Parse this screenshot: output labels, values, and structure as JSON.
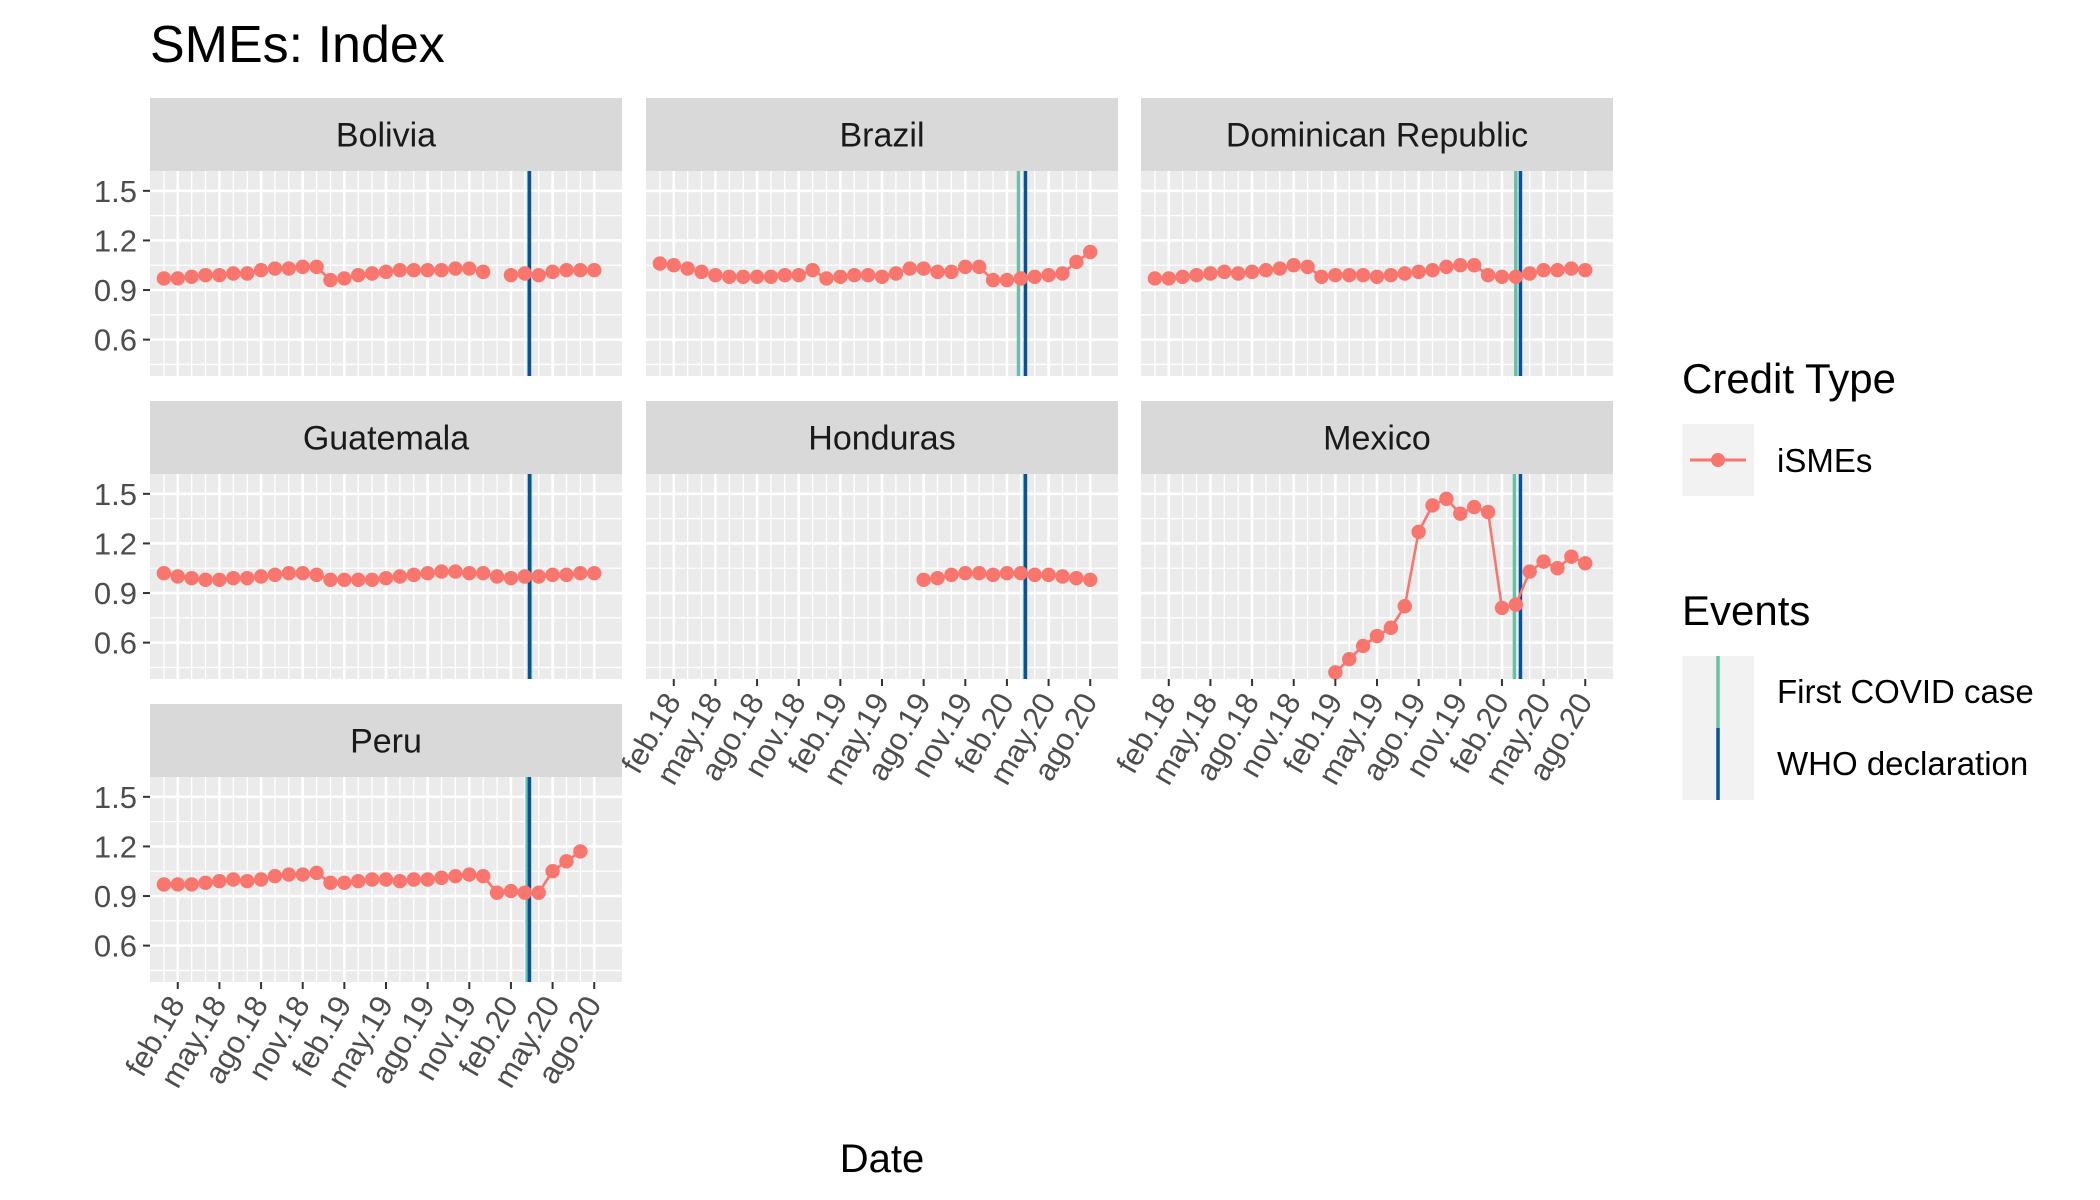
{
  "chart_data": {
    "type": "line",
    "title": "SMEs: Index",
    "xlabel": "Date",
    "ylabel": "",
    "ylim": [
      0.38,
      1.62
    ],
    "y_ticks": [
      "0.6",
      "0.9",
      "1.2",
      "1.5"
    ],
    "x_tick_labels": [
      "feb.18",
      "may.18",
      "ago.18",
      "nov.18",
      "feb.19",
      "may.19",
      "ago.19",
      "nov.19",
      "feb.20",
      "may.20",
      "ago.20"
    ],
    "x_range": [
      "2017-12",
      "2020-10"
    ],
    "grid": true,
    "facet_layout": "3 columns, 7 panels",
    "legend_position": "right",
    "x": [
      "2018-01",
      "2018-02",
      "2018-03",
      "2018-04",
      "2018-05",
      "2018-06",
      "2018-07",
      "2018-08",
      "2018-09",
      "2018-10",
      "2018-11",
      "2018-12",
      "2019-01",
      "2019-02",
      "2019-03",
      "2019-04",
      "2019-05",
      "2019-06",
      "2019-07",
      "2019-08",
      "2019-09",
      "2019-10",
      "2019-11",
      "2019-12",
      "2020-01",
      "2020-02",
      "2020-03",
      "2020-04",
      "2020-05",
      "2020-06",
      "2020-07",
      "2020-08"
    ],
    "panels": [
      {
        "name": "Bolivia",
        "first_covid": "2020-03-10",
        "who_declaration": "2020-03-11",
        "values": [
          0.97,
          0.97,
          0.98,
          0.99,
          0.99,
          1.0,
          1.0,
          1.02,
          1.03,
          1.03,
          1.04,
          1.04,
          0.96,
          0.97,
          0.99,
          1.0,
          1.01,
          1.02,
          1.02,
          1.02,
          1.02,
          1.03,
          1.03,
          1.01,
          null,
          0.99,
          1.0,
          0.99,
          1.01,
          1.02,
          1.02,
          1.02
        ]
      },
      {
        "name": "Brazil",
        "first_covid": "2020-02-26",
        "who_declaration": "2020-03-11",
        "values": [
          1.06,
          1.05,
          1.03,
          1.01,
          0.99,
          0.98,
          0.98,
          0.98,
          0.98,
          0.99,
          0.99,
          1.02,
          0.97,
          0.98,
          0.99,
          0.99,
          0.98,
          1.0,
          1.03,
          1.03,
          1.01,
          1.01,
          1.04,
          1.04,
          0.96,
          0.96,
          0.97,
          0.98,
          0.99,
          1.0,
          1.07,
          1.13
        ]
      },
      {
        "name": "Dominican Republic",
        "first_covid": "2020-03-01",
        "who_declaration": "2020-03-11",
        "values": [
          0.97,
          0.97,
          0.98,
          0.99,
          1.0,
          1.01,
          1.0,
          1.01,
          1.02,
          1.03,
          1.05,
          1.04,
          0.98,
          0.99,
          0.99,
          0.99,
          0.98,
          0.99,
          1.0,
          1.01,
          1.02,
          1.04,
          1.05,
          1.05,
          0.99,
          0.98,
          0.98,
          1.0,
          1.02,
          1.02,
          1.03,
          1.02
        ]
      },
      {
        "name": "Guatemala",
        "first_covid": "2020-03-13",
        "who_declaration": "2020-03-11",
        "values": [
          1.02,
          1.0,
          0.99,
          0.98,
          0.98,
          0.99,
          0.99,
          1.0,
          1.01,
          1.02,
          1.02,
          1.01,
          0.98,
          0.98,
          0.98,
          0.98,
          0.99,
          1.0,
          1.01,
          1.02,
          1.03,
          1.03,
          1.02,
          1.02,
          1.0,
          0.99,
          1.0,
          1.0,
          1.01,
          1.01,
          1.02,
          1.02
        ]
      },
      {
        "name": "Honduras",
        "first_covid": "2020-03-10",
        "who_declaration": "2020-03-11",
        "values": [
          null,
          null,
          null,
          null,
          null,
          null,
          null,
          null,
          null,
          null,
          null,
          null,
          null,
          null,
          null,
          null,
          null,
          null,
          null,
          0.98,
          0.99,
          1.01,
          1.02,
          1.02,
          1.01,
          1.02,
          1.02,
          1.01,
          1.01,
          1.0,
          0.99,
          0.98
        ]
      },
      {
        "name": "Mexico",
        "first_covid": "2020-02-28",
        "who_declaration": "2020-03-11",
        "values": [
          null,
          null,
          null,
          null,
          null,
          null,
          null,
          null,
          null,
          null,
          null,
          null,
          null,
          0.42,
          0.5,
          0.58,
          0.64,
          0.69,
          0.82,
          1.27,
          1.43,
          1.47,
          1.38,
          1.42,
          1.39,
          0.81,
          0.83,
          1.03,
          1.09,
          1.05,
          1.12,
          1.08
        ]
      },
      {
        "name": "Peru",
        "first_covid": "2020-03-06",
        "who_declaration": "2020-03-11",
        "values": [
          0.97,
          0.97,
          0.97,
          0.98,
          0.99,
          1.0,
          0.99,
          1.0,
          1.02,
          1.03,
          1.03,
          1.04,
          0.98,
          0.98,
          0.99,
          1.0,
          1.0,
          0.99,
          1.0,
          1.0,
          1.01,
          1.02,
          1.03,
          1.02,
          0.92,
          0.93,
          0.92,
          0.92,
          1.05,
          1.11,
          1.17,
          null
        ]
      }
    ],
    "legend": {
      "credit_title": "Credit Type",
      "series_label": "iSMEs",
      "events_title": "Events",
      "first_label": "First COVID case",
      "who_label": "WHO declaration"
    },
    "colors": {
      "series": "#f8766d",
      "first_covid": "#66c2a5",
      "who": "#08519c",
      "panel_bg": "#ebebeb",
      "strip_bg": "#d9d9d9",
      "grid": "#ffffff"
    }
  }
}
